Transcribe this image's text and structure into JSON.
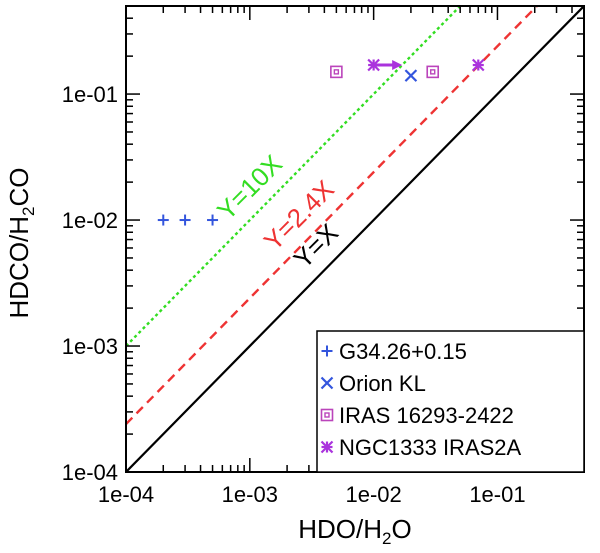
{
  "chart_data": {
    "type": "scatter",
    "title": "",
    "xlabel": {
      "main": "HDO/H",
      "sub": "2",
      "tail": "O"
    },
    "ylabel": {
      "main": "HDCO/H",
      "sub": "2",
      "tail": "CO"
    },
    "xscale": "log",
    "yscale": "log",
    "xlim": [
      0.0001,
      0.5
    ],
    "ylim": [
      0.0001,
      0.5
    ],
    "xticks": [
      0.0001,
      0.001,
      0.01,
      0.1
    ],
    "yticks": [
      0.0001,
      0.001,
      0.01,
      0.1
    ],
    "xtick_labels": [
      "1e-04",
      "1e-03",
      "1e-02",
      "1e-01"
    ],
    "ytick_labels": [
      "1e-04",
      "1e-03",
      "1e-02",
      "1e-01"
    ],
    "grid": false,
    "legend_position": "bottom-right",
    "reference_lines": [
      {
        "label": "Y=X",
        "slope_factor": 1,
        "color": "#000000",
        "style": "solid"
      },
      {
        "label": "Y=2.4X",
        "slope_factor": 2.4,
        "color": "#ee3333",
        "style": "dashed"
      },
      {
        "label": "Y=10X",
        "slope_factor": 10,
        "color": "#33dd22",
        "style": "dotted"
      }
    ],
    "series": [
      {
        "name": "G34.26+0.15",
        "marker": "plus",
        "color": "#3355dd",
        "points": [
          {
            "x": 0.0002,
            "y": 0.01
          },
          {
            "x": 0.0003,
            "y": 0.01
          },
          {
            "x": 0.0005,
            "y": 0.01
          }
        ]
      },
      {
        "name": "Orion KL",
        "marker": "cross",
        "color": "#3355dd",
        "points": [
          {
            "x": 0.02,
            "y": 0.14
          }
        ]
      },
      {
        "name": "IRAS 16293-2422",
        "marker": "square",
        "color": "#bb44bb",
        "points": [
          {
            "x": 0.005,
            "y": 0.15
          },
          {
            "x": 0.03,
            "y": 0.15
          }
        ]
      },
      {
        "name": "NGC1333 IRAS2A",
        "marker": "asterisk",
        "color": "#aa33dd",
        "points": [
          {
            "x": 0.01,
            "y": 0.17
          },
          {
            "x": 0.07,
            "y": 0.17
          }
        ],
        "arrow": {
          "from_x": 0.01,
          "to_x": 0.017,
          "y": 0.17
        }
      }
    ]
  }
}
